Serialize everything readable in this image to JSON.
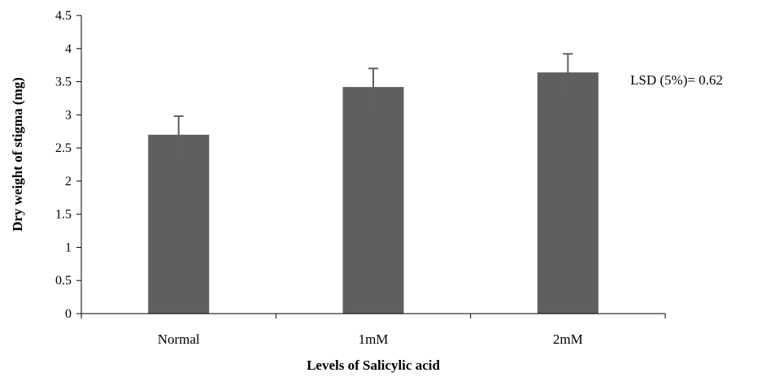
{
  "chart_data": {
    "type": "bar",
    "categories": [
      "Normal",
      "1mM",
      "2mM"
    ],
    "values": [
      2.7,
      3.42,
      3.64
    ],
    "error": [
      0.28,
      0.28,
      0.28
    ],
    "title": "",
    "xlabel": "Levels of Salicylic acid",
    "ylabel": "Dry weight of stigma (mg)",
    "ylim": [
      0,
      4.5
    ],
    "yticks": [
      "0",
      "0.5",
      "1",
      "1.5",
      "2",
      "2.5",
      "3",
      "3.5",
      "4",
      "4.5"
    ],
    "grid": false,
    "legend": "none",
    "annotation": "LSD (5%)= 0.62",
    "bar_color": "#5f5f5f",
    "error_color": "#606060",
    "axis_color": "#000000"
  }
}
